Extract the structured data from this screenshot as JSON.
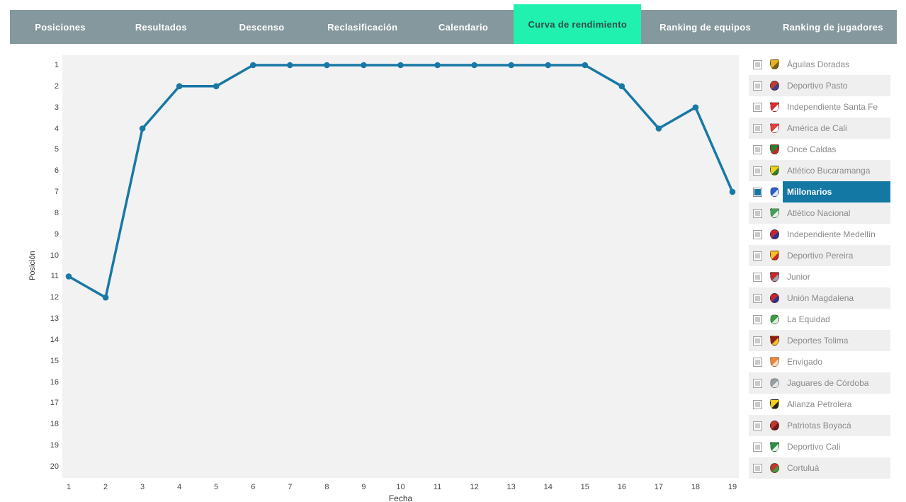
{
  "nav": {
    "bg_color": "#85989d",
    "text_color": "#ffffff",
    "active_bg_color": "#21f1af",
    "active_text_color": "#2d4f4a",
    "tabs": [
      {
        "label": "Posiciones",
        "active": false
      },
      {
        "label": "Resultados",
        "active": false
      },
      {
        "label": "Descenso",
        "active": false
      },
      {
        "label": "Reclasificación",
        "active": false
      },
      {
        "label": "Calendario",
        "active": false
      },
      {
        "label": "Curva de rendimiento",
        "active": true
      },
      {
        "label": "Ranking de equipos",
        "active": false
      },
      {
        "label": "Ranking de jugadores",
        "active": false
      }
    ]
  },
  "chart_data": {
    "type": "line",
    "title": "Curva de rendimiento",
    "xlabel": "Fecha",
    "ylabel": "Posición",
    "x": [
      1,
      2,
      3,
      4,
      5,
      6,
      7,
      8,
      9,
      10,
      11,
      12,
      13,
      14,
      15,
      16,
      17,
      18,
      19
    ],
    "xticks": [
      1,
      2,
      3,
      4,
      5,
      6,
      7,
      8,
      9,
      10,
      11,
      12,
      13,
      14,
      15,
      16,
      17,
      18,
      19
    ],
    "yticks": [
      1,
      2,
      3,
      4,
      5,
      6,
      7,
      8,
      9,
      10,
      11,
      12,
      13,
      14,
      15,
      16,
      17,
      18,
      19,
      20
    ],
    "ylim": [
      1,
      20
    ],
    "y_axis_inverted": true,
    "grid": false,
    "plot_bg": "#f2f2f2",
    "legend_position": "none",
    "series": [
      {
        "name": "Millonarios",
        "color": "#1878a6",
        "values": [
          11,
          12,
          4,
          2,
          2,
          1,
          1,
          1,
          1,
          1,
          1,
          1,
          1,
          1,
          1,
          2,
          4,
          3,
          7
        ]
      }
    ]
  },
  "team_list": {
    "selected_bg": "#1478a5",
    "selected_text": "#ffffff",
    "text_color": "#8a8a8a",
    "stripe_color": "#efefef",
    "items": [
      {
        "name": "Águilas Doradas",
        "checked": false,
        "selected": false,
        "logo": {
          "shape": "shield",
          "primary": "#e3b422",
          "secondary": "#7a5f10"
        }
      },
      {
        "name": "Deportivo Pasto",
        "checked": false,
        "selected": false,
        "logo": {
          "shape": "circle",
          "primary": "#c03a2b",
          "secondary": "#3a3f8f"
        }
      },
      {
        "name": "Independiente Santa Fe",
        "checked": false,
        "selected": false,
        "logo": {
          "shape": "shield",
          "primary": "#d63031",
          "secondary": "#ffffff"
        }
      },
      {
        "name": "América de Cali",
        "checked": false,
        "selected": false,
        "logo": {
          "shape": "shield",
          "primary": "#e04040",
          "secondary": "#ffffff"
        }
      },
      {
        "name": "Once Caldas",
        "checked": false,
        "selected": false,
        "logo": {
          "shape": "shield",
          "primary": "#2e7d32",
          "secondary": "#c62828"
        }
      },
      {
        "name": "Atlético Bucaramanga",
        "checked": false,
        "selected": false,
        "logo": {
          "shape": "shield",
          "primary": "#f0d01f",
          "secondary": "#2e7d32"
        }
      },
      {
        "name": "Millonarios",
        "checked": true,
        "selected": true,
        "logo": {
          "shape": "circle",
          "primary": "#2a5cc8",
          "secondary": "#dce6f8"
        }
      },
      {
        "name": "Atlético Nacional",
        "checked": false,
        "selected": false,
        "logo": {
          "shape": "shield",
          "primary": "#43a05a",
          "secondary": "#e8f0e8"
        }
      },
      {
        "name": "Independiente Medellín",
        "checked": false,
        "selected": false,
        "logo": {
          "shape": "circle",
          "primary": "#c62828",
          "secondary": "#283593"
        }
      },
      {
        "name": "Deportivo Pereira",
        "checked": false,
        "selected": false,
        "logo": {
          "shape": "shield",
          "primary": "#f2c12e",
          "secondary": "#c62828"
        }
      },
      {
        "name": "Junior",
        "checked": false,
        "selected": false,
        "logo": {
          "shape": "shield",
          "primary": "#c62828",
          "secondary": "#9aa7b5"
        }
      },
      {
        "name": "Unión Magdalena",
        "checked": false,
        "selected": false,
        "logo": {
          "shape": "circle",
          "primary": "#c62828",
          "secondary": "#283593"
        }
      },
      {
        "name": "La Equidad",
        "checked": false,
        "selected": false,
        "logo": {
          "shape": "circle",
          "primary": "#3f9a46",
          "secondary": "#dff0df"
        }
      },
      {
        "name": "Deportes Tolima",
        "checked": false,
        "selected": false,
        "logo": {
          "shape": "shield",
          "primary": "#8f1d1d",
          "secondary": "#f2c12e"
        }
      },
      {
        "name": "Envigado",
        "checked": false,
        "selected": false,
        "logo": {
          "shape": "shield",
          "primary": "#e8883a",
          "secondary": "#f5ddc0"
        }
      },
      {
        "name": "Jaguares de Córdoba",
        "checked": false,
        "selected": false,
        "logo": {
          "shape": "circle",
          "primary": "#98a0a6",
          "secondary": "#e8e8e8"
        }
      },
      {
        "name": "Alianza Petrolera",
        "checked": false,
        "selected": false,
        "logo": {
          "shape": "shield",
          "primary": "#f0d01f",
          "secondary": "#222222"
        }
      },
      {
        "name": "Patriotas Boyacá",
        "checked": false,
        "selected": false,
        "logo": {
          "shape": "circle",
          "primary": "#c0392b",
          "secondary": "#6a1b1a"
        }
      },
      {
        "name": "Deportivo Cali",
        "checked": false,
        "selected": false,
        "logo": {
          "shape": "shield",
          "primary": "#2e8b45",
          "secondary": "#e8f0e8"
        }
      },
      {
        "name": "Cortuluá",
        "checked": false,
        "selected": false,
        "logo": {
          "shape": "circle",
          "primary": "#c0392b",
          "secondary": "#3f9a46"
        }
      }
    ]
  }
}
